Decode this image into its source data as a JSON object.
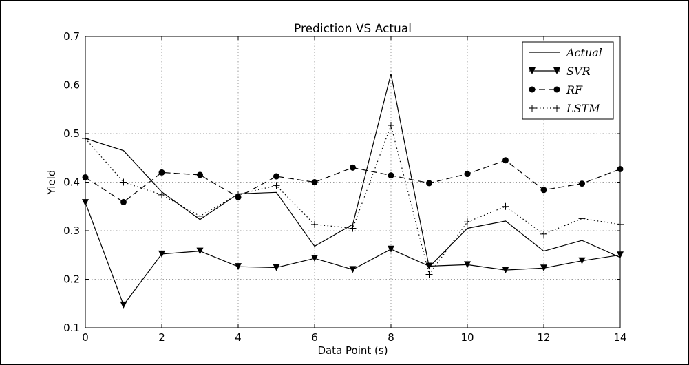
{
  "chart_data": {
    "type": "line",
    "title": "Prediction VS Actual",
    "xlabel": "Data Point (s)",
    "ylabel": "Yield",
    "xlim": [
      0,
      14
    ],
    "ylim": [
      0.1,
      0.7
    ],
    "xticks": [
      "0",
      "2",
      "4",
      "6",
      "8",
      "10",
      "12",
      "14"
    ],
    "yticks": [
      "0.1",
      "0.2",
      "0.3",
      "0.4",
      "0.5",
      "0.6",
      "0.7"
    ],
    "grid": true,
    "legend_position": "top-right",
    "x": [
      0,
      1,
      2,
      3,
      4,
      5,
      6,
      7,
      8,
      9,
      10,
      11,
      12,
      13,
      14
    ],
    "series": [
      {
        "name": "Actual",
        "style": "solid",
        "marker": "none",
        "values": [
          0.49,
          0.465,
          0.38,
          0.323,
          0.376,
          0.379,
          0.268,
          0.313,
          0.623,
          0.225,
          0.305,
          0.32,
          0.258,
          0.28,
          0.245
        ]
      },
      {
        "name": "SVR",
        "style": "solid",
        "marker": "triangle-down",
        "values": [
          0.358,
          0.147,
          0.252,
          0.258,
          0.226,
          0.224,
          0.243,
          0.22,
          0.262,
          0.227,
          0.23,
          0.219,
          0.223,
          0.238,
          0.25
        ]
      },
      {
        "name": "RF",
        "style": "dashed",
        "marker": "circle",
        "values": [
          0.41,
          0.359,
          0.42,
          0.415,
          0.369,
          0.412,
          0.4,
          0.43,
          0.414,
          0.398,
          0.417,
          0.445,
          0.384,
          0.397,
          0.427
        ]
      },
      {
        "name": "LSTM",
        "style": "dotted",
        "marker": "plus",
        "values": [
          0.49,
          0.4,
          0.374,
          0.33,
          0.375,
          0.393,
          0.313,
          0.305,
          0.517,
          0.21,
          0.318,
          0.35,
          0.293,
          0.325,
          0.313
        ]
      }
    ]
  }
}
